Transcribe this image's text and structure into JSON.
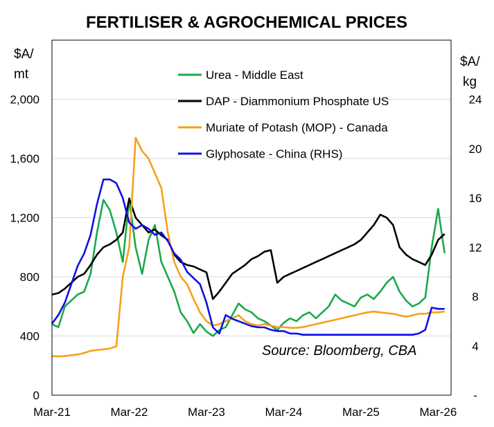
{
  "chart_data": {
    "type": "line",
    "title": "FERTILISER & AGROCHEMICAL PRICES",
    "ylabel_left": "$A/ mt",
    "ylabel_right": "$A/ kg",
    "ylim_left": [
      0,
      2400
    ],
    "ylim_right": [
      0,
      28.8
    ],
    "yticks_left": [
      "0",
      "400",
      "800",
      "1,200",
      "1,600",
      "2,000"
    ],
    "yticks_right": [
      "-",
      "4",
      "8",
      "12",
      "16",
      "20",
      "24"
    ],
    "xticks": [
      "Mar-21",
      "Mar-22",
      "Mar-23",
      "Mar-24",
      "Mar-25",
      "Mar-26"
    ],
    "xlim": [
      "2021-03",
      "2026-05"
    ],
    "grid": "horizontal",
    "annotation": "Source: Bloomberg,  CBA",
    "legend_position": "top-center",
    "series": [
      {
        "name": "Urea - Middle East",
        "color": "#1aa84c",
        "axis": "left",
        "x": [
          "2021-03",
          "2021-04",
          "2021-05",
          "2021-06",
          "2021-07",
          "2021-08",
          "2021-09",
          "2021-10",
          "2021-11",
          "2021-12",
          "2022-01",
          "2022-02",
          "2022-03",
          "2022-04",
          "2022-05",
          "2022-06",
          "2022-07",
          "2022-08",
          "2022-09",
          "2022-10",
          "2022-11",
          "2022-12",
          "2023-01",
          "2023-02",
          "2023-03",
          "2023-04",
          "2023-05",
          "2023-06",
          "2023-07",
          "2023-08",
          "2023-09",
          "2023-10",
          "2023-11",
          "2023-12",
          "2024-01",
          "2024-02",
          "2024-03",
          "2024-04",
          "2024-05",
          "2024-06",
          "2024-07",
          "2024-08",
          "2024-09",
          "2024-10",
          "2024-11",
          "2024-12",
          "2025-01",
          "2025-02",
          "2025-03",
          "2025-04",
          "2025-05",
          "2025-06",
          "2025-07",
          "2025-08",
          "2025-09",
          "2025-10",
          "2025-11",
          "2025-12",
          "2026-01",
          "2026-02",
          "2026-03",
          "2026-04"
        ],
        "values": [
          480,
          460,
          600,
          640,
          680,
          700,
          820,
          1100,
          1320,
          1250,
          1100,
          900,
          1320,
          1000,
          820,
          1050,
          1150,
          900,
          800,
          700,
          560,
          500,
          420,
          480,
          430,
          400,
          440,
          460,
          540,
          620,
          580,
          560,
          520,
          500,
          470,
          440,
          490,
          520,
          500,
          540,
          560,
          520,
          560,
          600,
          680,
          640,
          620,
          600,
          660,
          680,
          650,
          700,
          760,
          800,
          700,
          640,
          600,
          620,
          660,
          1000,
          1260,
          960
        ]
      },
      {
        "name": "DAP - Diammonium Phosphate US",
        "color": "#000000",
        "axis": "left",
        "x": [
          "2021-03",
          "2021-04",
          "2021-05",
          "2021-06",
          "2021-07",
          "2021-08",
          "2021-09",
          "2021-10",
          "2021-11",
          "2021-12",
          "2022-01",
          "2022-02",
          "2022-03",
          "2022-04",
          "2022-05",
          "2022-06",
          "2022-07",
          "2022-08",
          "2022-09",
          "2022-10",
          "2022-11",
          "2022-12",
          "2023-01",
          "2023-02",
          "2023-03",
          "2023-04",
          "2023-05",
          "2023-06",
          "2023-07",
          "2023-08",
          "2023-09",
          "2023-10",
          "2023-11",
          "2023-12",
          "2024-01",
          "2024-02",
          "2024-03",
          "2024-04",
          "2024-05",
          "2024-06",
          "2024-07",
          "2024-08",
          "2024-09",
          "2024-10",
          "2024-11",
          "2024-12",
          "2025-01",
          "2025-02",
          "2025-03",
          "2025-04",
          "2025-05",
          "2025-06",
          "2025-07",
          "2025-08",
          "2025-09",
          "2025-10",
          "2025-11",
          "2025-12",
          "2026-01",
          "2026-02",
          "2026-03",
          "2026-04"
        ],
        "values": [
          680,
          690,
          720,
          760,
          800,
          820,
          880,
          950,
          1000,
          1020,
          1050,
          1100,
          1330,
          1200,
          1150,
          1100,
          1120,
          1080,
          1050,
          950,
          900,
          880,
          870,
          850,
          830,
          650,
          700,
          760,
          820,
          850,
          880,
          920,
          940,
          970,
          980,
          760,
          800,
          820,
          840,
          860,
          880,
          900,
          920,
          940,
          960,
          980,
          1000,
          1020,
          1050,
          1100,
          1150,
          1220,
          1200,
          1150,
          1000,
          950,
          920,
          900,
          880,
          950,
          1050,
          1090
        ]
      },
      {
        "name": "Muriate of Potash (MOP) - Canada",
        "color": "#f5a01a",
        "axis": "left",
        "x": [
          "2021-03",
          "2021-04",
          "2021-05",
          "2021-06",
          "2021-07",
          "2021-08",
          "2021-09",
          "2021-10",
          "2021-11",
          "2021-12",
          "2022-01",
          "2022-02",
          "2022-03",
          "2022-04",
          "2022-05",
          "2022-06",
          "2022-07",
          "2022-08",
          "2022-09",
          "2022-10",
          "2022-11",
          "2022-12",
          "2023-01",
          "2023-02",
          "2023-03",
          "2023-04",
          "2023-05",
          "2023-06",
          "2023-07",
          "2023-08",
          "2023-09",
          "2023-10",
          "2023-11",
          "2023-12",
          "2024-01",
          "2024-02",
          "2024-03",
          "2024-04",
          "2024-05",
          "2024-06",
          "2024-07",
          "2024-08",
          "2024-09",
          "2024-10",
          "2024-11",
          "2024-12",
          "2025-01",
          "2025-02",
          "2025-03",
          "2025-04",
          "2025-05",
          "2025-06",
          "2025-07",
          "2025-08",
          "2025-09",
          "2025-10",
          "2025-11",
          "2025-12",
          "2026-01",
          "2026-02",
          "2026-03",
          "2026-04"
        ],
        "values": [
          265,
          262,
          265,
          270,
          275,
          285,
          300,
          305,
          310,
          315,
          330,
          800,
          1000,
          1740,
          1650,
          1600,
          1500,
          1400,
          1100,
          900,
          800,
          750,
          650,
          560,
          500,
          470,
          480,
          500,
          520,
          540,
          500,
          480,
          470,
          480,
          470,
          460,
          460,
          455,
          455,
          460,
          470,
          480,
          490,
          500,
          510,
          520,
          530,
          540,
          550,
          560,
          565,
          560,
          555,
          550,
          540,
          530,
          540,
          550,
          550,
          560,
          560,
          565
        ]
      },
      {
        "name": "Glyphosate - China (RHS)",
        "color": "#1010e8",
        "axis": "right",
        "x": [
          "2021-03",
          "2021-04",
          "2021-05",
          "2021-06",
          "2021-07",
          "2021-08",
          "2021-09",
          "2021-10",
          "2021-11",
          "2021-12",
          "2022-01",
          "2022-02",
          "2022-03",
          "2022-04",
          "2022-05",
          "2022-06",
          "2022-07",
          "2022-08",
          "2022-09",
          "2022-10",
          "2022-11",
          "2022-12",
          "2023-01",
          "2023-02",
          "2023-03",
          "2023-04",
          "2023-05",
          "2023-06",
          "2023-07",
          "2023-08",
          "2023-09",
          "2023-10",
          "2023-11",
          "2023-12",
          "2024-01",
          "2024-02",
          "2024-03",
          "2024-04",
          "2024-05",
          "2024-06",
          "2024-07",
          "2024-08",
          "2024-09",
          "2024-10",
          "2024-11",
          "2024-12",
          "2025-01",
          "2025-02",
          "2025-03",
          "2025-04",
          "2025-05",
          "2025-06",
          "2025-07",
          "2025-08",
          "2025-09",
          "2025-10",
          "2025-11",
          "2025-12",
          "2026-01",
          "2026-02",
          "2026-03",
          "2026-04"
        ],
        "values": [
          5.8,
          6.5,
          7.5,
          9.0,
          10.5,
          11.5,
          13.0,
          15.5,
          17.5,
          17.5,
          17.2,
          16.0,
          14.0,
          13.5,
          13.8,
          13.5,
          13.0,
          13.2,
          12.5,
          11.5,
          11.0,
          10.0,
          9.5,
          9.0,
          7.5,
          5.5,
          5.0,
          6.5,
          6.2,
          6.0,
          5.8,
          5.6,
          5.5,
          5.5,
          5.3,
          5.2,
          5.2,
          5.0,
          5.0,
          4.9,
          4.9,
          4.9,
          4.9,
          4.9,
          4.9,
          4.9,
          4.9,
          4.9,
          4.9,
          4.9,
          4.9,
          4.9,
          4.9,
          4.9,
          4.9,
          4.9,
          4.9,
          5.0,
          5.3,
          7.1,
          7.0,
          7.0
        ]
      }
    ]
  }
}
